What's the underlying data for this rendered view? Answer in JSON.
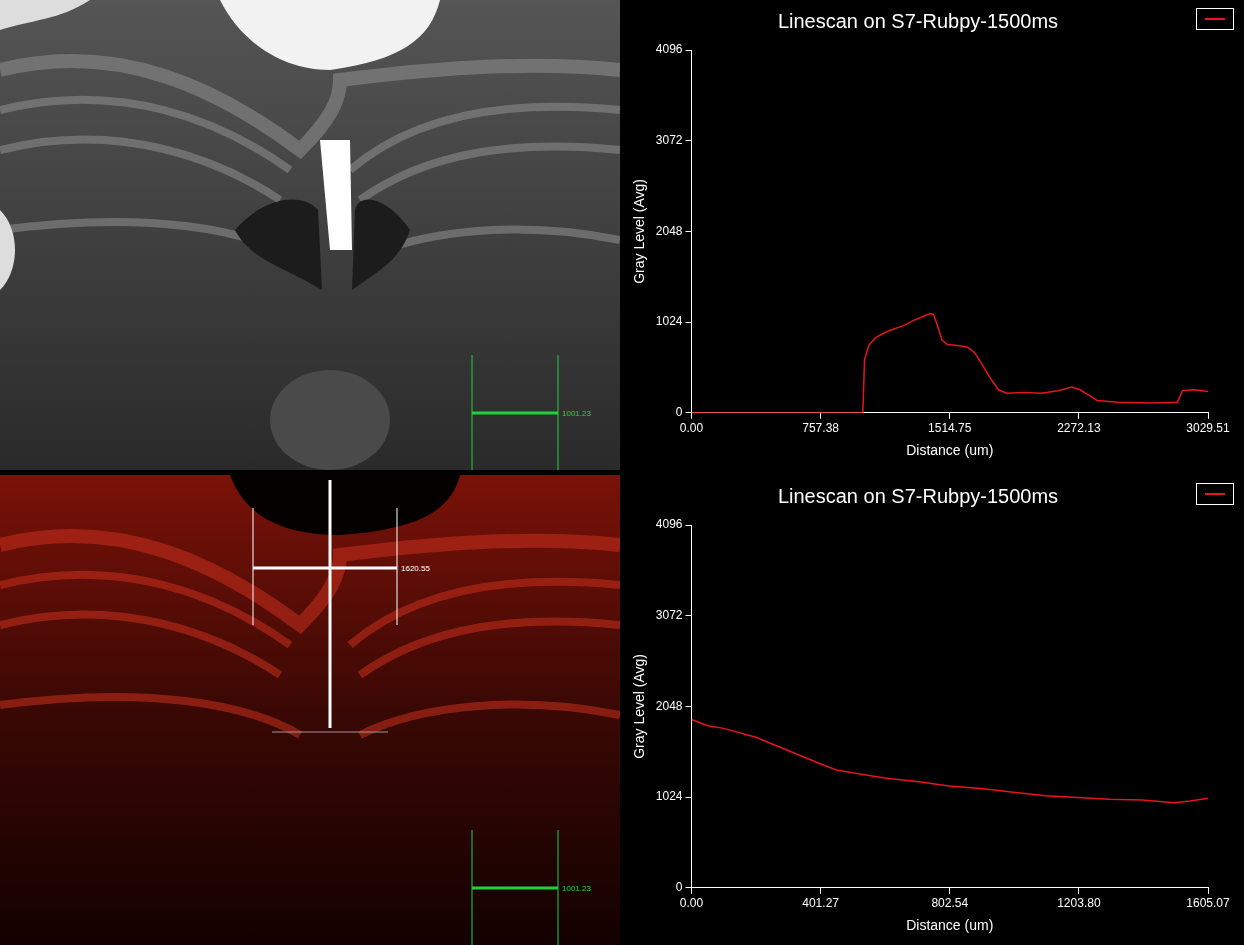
{
  "images": [
    {
      "scale_bar": "1001.23"
    },
    {
      "scale_bar": "1001.23",
      "linescan_label": "1620.55"
    }
  ],
  "chart_data": [
    {
      "type": "line",
      "title": "Linescan on S7-Rubpy-1500ms",
      "x_label": "Distance (um)",
      "y_label": "Gray Level (Avg)",
      "x": [
        0,
        500,
        1005,
        1015,
        1040,
        1080,
        1150,
        1250,
        1300,
        1360,
        1400,
        1420,
        1440,
        1470,
        1500,
        1560,
        1620,
        1660,
        1700,
        1750,
        1800,
        1850,
        1950,
        2050,
        2150,
        2230,
        2280,
        2330,
        2380,
        2500,
        2700,
        2850,
        2880,
        2950,
        3029.51
      ],
      "series": [
        {
          "color": "#e8141c",
          "values": [
            0,
            0,
            0,
            600,
            760,
            850,
            920,
            990,
            1040,
            1090,
            1120,
            1110,
            1000,
            820,
            770,
            760,
            740,
            680,
            560,
            400,
            260,
            220,
            230,
            220,
            250,
            290,
            260,
            200,
            140,
            120,
            110,
            120,
            250,
            260,
            240
          ]
        }
      ],
      "xlim": [
        0,
        3029.51
      ],
      "ylim": [
        0,
        4096
      ],
      "xticks": [
        {
          "value": 0,
          "label": "0.00"
        },
        757.38,
        1514.75,
        2272.13,
        3029.51
      ],
      "yticks": [
        0,
        1024,
        2048,
        3072,
        4096
      ],
      "grid": false
    },
    {
      "type": "line",
      "title": "Linescan on S7-Rubpy-1500ms",
      "x_label": "Distance (um)",
      "y_label": "Gray Level (Avg)",
      "x": [
        0,
        50,
        100,
        200,
        300,
        400,
        450,
        500,
        600,
        700,
        800,
        900,
        1000,
        1100,
        1200,
        1300,
        1400,
        1500,
        1550,
        1605.07
      ],
      "series": [
        {
          "color": "#e8141c",
          "values": [
            1900,
            1830,
            1800,
            1700,
            1550,
            1400,
            1330,
            1300,
            1240,
            1200,
            1150,
            1120,
            1080,
            1040,
            1020,
            1000,
            990,
            960,
            980,
            1010
          ]
        }
      ],
      "xlim": [
        0,
        1605.07
      ],
      "ylim": [
        0,
        4096
      ],
      "xticks": [
        {
          "value": 0,
          "label": "0.00"
        },
        401.27,
        802.54,
        {
          "value": 1203.8,
          "label": "1203.80"
        },
        1605.07
      ],
      "yticks": [
        0,
        1024,
        2048,
        3072,
        4096
      ],
      "grid": false
    }
  ]
}
